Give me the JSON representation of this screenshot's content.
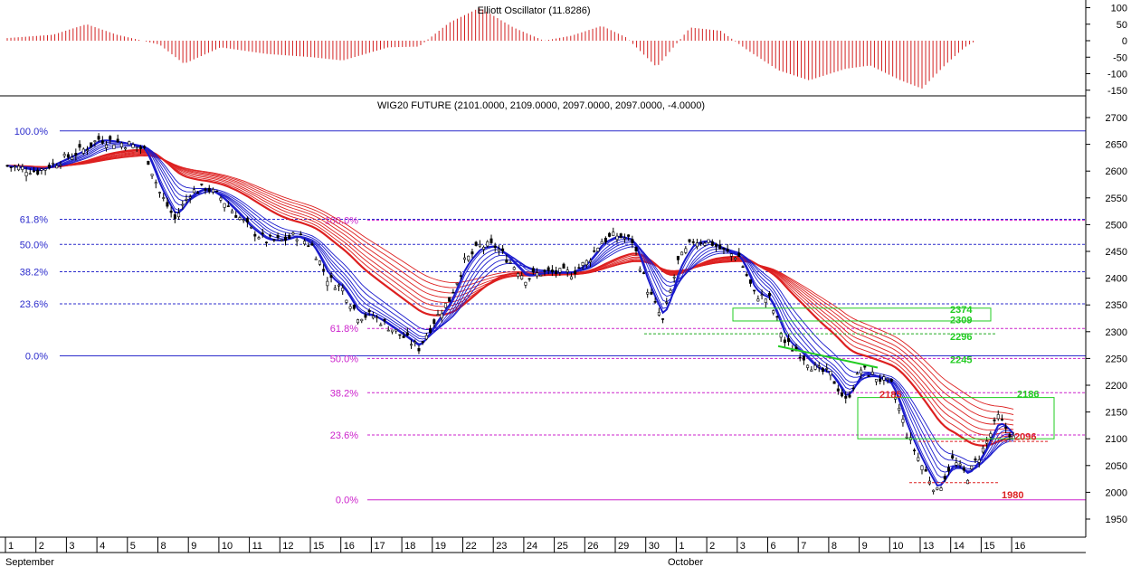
{
  "oscillator": {
    "title": "Elliott Oscillator (11.8286)",
    "y_ticks": [
      {
        "value": 100,
        "label": "100"
      },
      {
        "value": 50,
        "label": "50"
      },
      {
        "value": 0,
        "label": "0"
      },
      {
        "value": -50,
        "label": "-50"
      },
      {
        "value": -100,
        "label": "-100"
      },
      {
        "value": -150,
        "label": "-150"
      }
    ],
    "color_positive": "#d32020",
    "color_negative": "#d32020"
  },
  "chart_data": {
    "type": "candlestick",
    "title": "WIG20 FUTURE (2101.0000, 2109.0000, 2097.0000, 2097.0000, -4.0000)",
    "ylim": [
      1920,
      2730
    ],
    "y_ticks": [
      1950,
      2000,
      2050,
      2100,
      2150,
      2200,
      2250,
      2300,
      2350,
      2400,
      2450,
      2500,
      2550,
      2600,
      2650,
      2700
    ],
    "x_tick_labels": [
      "1",
      "2",
      "3",
      "4",
      "5",
      "8",
      "9",
      "10",
      "11",
      "12",
      "15",
      "16",
      "17",
      "18",
      "19",
      "22",
      "23",
      "24",
      "25",
      "26",
      "29",
      "30",
      "1",
      "2",
      "3",
      "6",
      "7",
      "8",
      "9",
      "10",
      "13",
      "14",
      "15",
      "16"
    ],
    "month_labels": [
      "September",
      "October"
    ],
    "price_path": [
      [
        0,
        2610
      ],
      [
        1.0,
        2600
      ],
      [
        2.5,
        2640
      ],
      [
        3.0,
        2660
      ],
      [
        4.0,
        2650
      ],
      [
        4.5,
        2640
      ],
      [
        5.0,
        2560
      ],
      [
        5.5,
        2510
      ],
      [
        6.0,
        2560
      ],
      [
        6.5,
        2570
      ],
      [
        7.0,
        2550
      ],
      [
        7.5,
        2520
      ],
      [
        8.0,
        2490
      ],
      [
        8.5,
        2470
      ],
      [
        9.0,
        2470
      ],
      [
        9.5,
        2480
      ],
      [
        10.0,
        2460
      ],
      [
        10.5,
        2400
      ],
      [
        11.0,
        2380
      ],
      [
        11.5,
        2330
      ],
      [
        12.0,
        2330
      ],
      [
        12.5,
        2310
      ],
      [
        13.0,
        2290
      ],
      [
        13.5,
        2270
      ],
      [
        14.0,
        2320
      ],
      [
        14.5,
        2360
      ],
      [
        15.0,
        2430
      ],
      [
        15.5,
        2460
      ],
      [
        16.0,
        2460
      ],
      [
        16.5,
        2430
      ],
      [
        17.0,
        2400
      ],
      [
        17.5,
        2410
      ],
      [
        18.0,
        2410
      ],
      [
        18.5,
        2410
      ],
      [
        19.0,
        2430
      ],
      [
        19.5,
        2470
      ],
      [
        20.0,
        2480
      ],
      [
        20.5,
        2470
      ],
      [
        21.0,
        2380
      ],
      [
        21.5,
        2320
      ],
      [
        22.0,
        2430
      ],
      [
        22.5,
        2470
      ],
      [
        23.0,
        2470
      ],
      [
        23.5,
        2450
      ],
      [
        24.0,
        2440
      ],
      [
        24.5,
        2370
      ],
      [
        25.0,
        2360
      ],
      [
        25.5,
        2280
      ],
      [
        26.0,
        2260
      ],
      [
        26.5,
        2230
      ],
      [
        27.0,
        2220
      ],
      [
        27.5,
        2170
      ],
      [
        28.0,
        2230
      ],
      [
        28.5,
        2215
      ],
      [
        29.0,
        2200
      ],
      [
        29.5,
        2110
      ],
      [
        30.0,
        2050
      ],
      [
        30.5,
        2000
      ],
      [
        31.0,
        2060
      ],
      [
        31.5,
        2030
      ],
      [
        32.0,
        2080
      ],
      [
        32.5,
        2140
      ],
      [
        33.0,
        2101
      ]
    ],
    "level_lines": [
      {
        "label": "100.0%",
        "value": 2675,
        "color": "#2c2ccc",
        "style": "solid"
      },
      {
        "label": "61.8%",
        "value": 2510,
        "color": "#2c2ccc",
        "style": "dashed"
      },
      {
        "label": "50.0%",
        "value": 2463,
        "color": "#2c2ccc",
        "style": "dashed"
      },
      {
        "label": "38.2%",
        "value": 2412,
        "color": "#2c2ccc",
        "style": "dashed"
      },
      {
        "label": "23.6%",
        "value": 2352,
        "color": "#2c2ccc",
        "style": "dashed"
      },
      {
        "label": "0.0%",
        "value": 2255,
        "color": "#2c2ccc",
        "style": "solid"
      }
    ],
    "fib_lines": [
      {
        "label": "100.0%",
        "value": 2508,
        "color": "#cc22cc",
        "style": "dashed"
      },
      {
        "label": "61.8%",
        "value": 2306,
        "color": "#cc22cc",
        "style": "dashed"
      },
      {
        "label": "50.0%",
        "value": 2250,
        "color": "#cc22cc",
        "style": "dashed"
      },
      {
        "label": "38.2%",
        "value": 2186,
        "color": "#cc22cc",
        "style": "dashed"
      },
      {
        "label": "23.6%",
        "value": 2107,
        "color": "#cc22cc",
        "style": "dashed"
      },
      {
        "label": "0.0%",
        "value": 1986,
        "color": "#cc22cc",
        "style": "solid"
      }
    ],
    "target_labels": [
      {
        "label": "2374",
        "value": 2344,
        "color": "#22cc22"
      },
      {
        "label": "2309",
        "value": 2324,
        "color": "#22cc22"
      },
      {
        "label": "2296",
        "value": 2293,
        "color": "#22cc22"
      },
      {
        "label": "2245",
        "value": 2250,
        "color": "#22cc22"
      },
      {
        "label": "2186",
        "value": 2186,
        "color": "#22cc22"
      },
      {
        "label": "2185",
        "value": 2185,
        "color": "#dd2222"
      },
      {
        "label": "2096",
        "value": 2106,
        "color": "#dd2222"
      },
      {
        "label": "1980",
        "value": 1997,
        "color": "#dd2222"
      }
    ],
    "colors": {
      "price_bars": "#000000",
      "fast_ma": "#1a1acc",
      "slow_ma": "#dd2020",
      "target_box": "#22cc22",
      "grid_line": "#000000"
    }
  }
}
